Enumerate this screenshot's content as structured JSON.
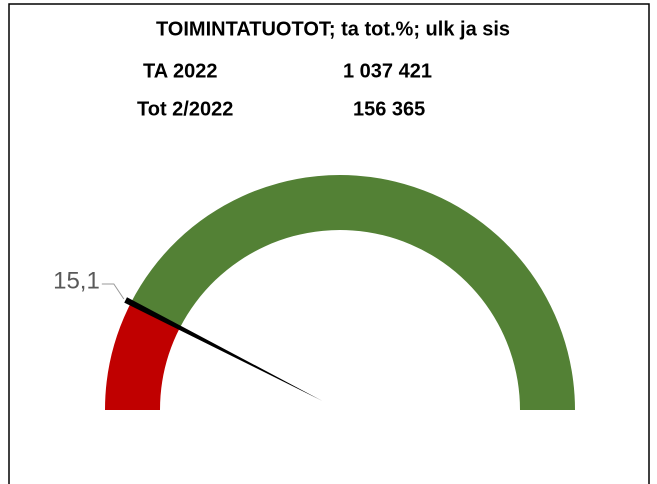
{
  "chart_data": {
    "type": "gauge",
    "title": "TOIMINTATUOTOT; ta tot.%; ulk ja sis",
    "rows": [
      [
        "TA 2022",
        "1 037 421"
      ],
      [
        "Tot 2/2022",
        "156 365"
      ]
    ],
    "value": 15.1,
    "value_labels": "15,1",
    "ylim": [
      0,
      100
    ],
    "colors": {
      "below": "#c00000",
      "above": "#538135",
      "needle": "#000000"
    }
  }
}
